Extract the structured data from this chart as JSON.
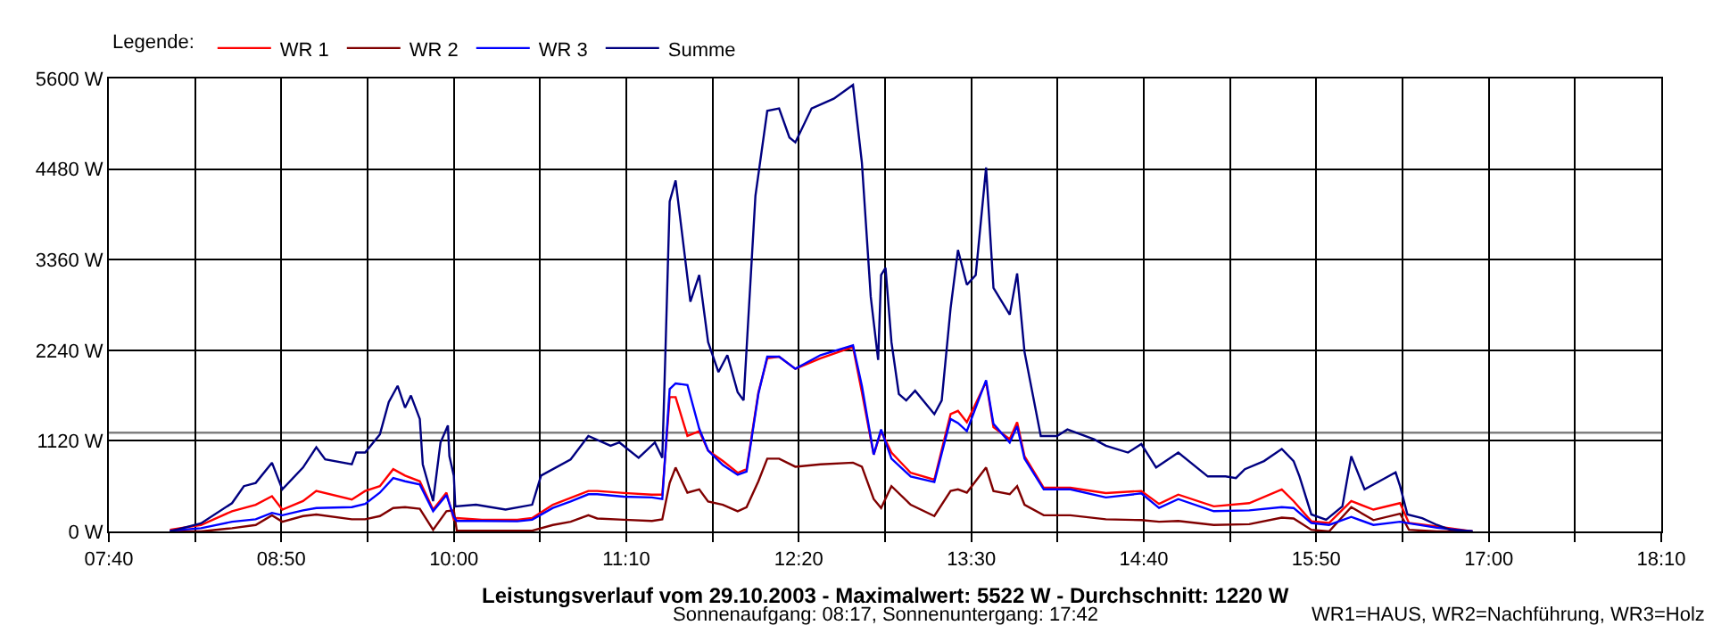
{
  "chart_data": {
    "type": "line",
    "title": "Leistungsverlauf vom 29.10.2003 - Maximalwert: 5522 W - Durchschnitt: 1220 W",
    "subtitle": "Sonnenaufgang: 08:17, Sonnenuntergang: 17:42",
    "legend_title": "Legende:",
    "annotations": [
      "WR1=HAUS, WR2=Nachführung, WR3=Holz"
    ],
    "x": [
      8.08,
      8.29,
      8.5,
      8.66,
      8.77,
      8.84,
      8.98,
      9.07,
      9.31,
      9.4,
      9.5,
      9.59,
      9.67,
      9.77,
      9.86,
      9.95,
      10.0,
      10.02,
      10.19,
      10.43,
      10.53,
      10.67,
      10.79,
      10.91,
      10.97,
      11.15,
      11.34,
      11.41,
      11.46,
      11.5,
      11.58,
      11.66,
      11.72,
      11.82,
      11.92,
      11.98,
      12.06,
      12.12,
      12.2,
      12.31,
      12.48,
      12.7,
      12.76,
      12.84,
      12.89,
      12.96,
      13.09,
      13.25,
      13.36,
      13.41,
      13.47,
      13.6,
      13.65,
      13.76,
      13.81,
      13.86,
      13.99,
      14.17,
      14.41,
      14.65,
      14.77,
      14.9,
      15.14,
      15.38,
      15.6,
      15.68,
      15.8,
      15.92,
      16.07,
      16.22,
      16.4,
      16.46,
      16.65,
      16.89
    ],
    "series": [
      {
        "name": "WR 1",
        "color": "#ff0000",
        "values": [
          20,
          80,
          250,
          330,
          435,
          270,
          375,
          500,
          395,
          500,
          560,
          770,
          690,
          620,
          270,
          480,
          145,
          165,
          145,
          145,
          165,
          330,
          415,
          500,
          500,
          475,
          455,
          455,
          1660,
          1660,
          1180,
          1240,
          1000,
          870,
          725,
          770,
          1720,
          2140,
          2160,
          2010,
          2140,
          2280,
          1720,
          950,
          1240,
          975,
          725,
          640,
          1450,
          1490,
          1350,
          1850,
          1290,
          1140,
          1350,
          930,
          540,
          540,
          475,
          500,
          340,
          455,
          310,
          350,
          520,
          375,
          125,
          105,
          375,
          270,
          350,
          105,
          60,
          0
        ]
      },
      {
        "name": "WR 2",
        "color": "#800000",
        "values": [
          0,
          0,
          40,
          80,
          200,
          120,
          190,
          210,
          150,
          150,
          190,
          290,
          300,
          280,
          20,
          250,
          260,
          10,
          10,
          10,
          10,
          80,
          120,
          200,
          160,
          145,
          130,
          150,
          600,
          790,
          480,
          520,
          370,
          330,
          250,
          300,
          620,
          900,
          900,
          800,
          830,
          850,
          800,
          400,
          290,
          560,
          330,
          190,
          500,
          520,
          480,
          790,
          500,
          460,
          560,
          330,
          200,
          200,
          150,
          140,
          120,
          130,
          80,
          90,
          170,
          160,
          20,
          0,
          300,
          140,
          220,
          20,
          0,
          0
        ]
      },
      {
        "name": "WR 3",
        "color": "#0000ff",
        "values": [
          10,
          40,
          120,
          150,
          230,
          200,
          260,
          290,
          300,
          340,
          480,
          660,
          620,
          580,
          250,
          450,
          180,
          130,
          130,
          125,
          145,
          290,
          370,
          460,
          460,
          430,
          420,
          400,
          1760,
          1830,
          1810,
          1270,
          1000,
          820,
          700,
          740,
          1700,
          2160,
          2160,
          2010,
          2180,
          2300,
          1800,
          950,
          1260,
          900,
          680,
          610,
          1390,
          1340,
          1240,
          1870,
          1330,
          1100,
          1300,
          900,
          520,
          520,
          420,
          470,
          290,
          400,
          250,
          260,
          300,
          290,
          105,
          80,
          180,
          80,
          120,
          100,
          45,
          0
        ]
      },
      {
        "name": "Summe",
        "color": "#000080",
        "x": [
          8.08,
          8.29,
          8.5,
          8.58,
          8.66,
          8.77,
          8.84,
          8.98,
          9.07,
          9.13,
          9.31,
          9.34,
          9.4,
          9.5,
          9.56,
          9.62,
          9.67,
          9.71,
          9.77,
          9.79,
          9.86,
          9.91,
          9.96,
          9.97,
          10.0,
          10.01,
          10.15,
          10.35,
          10.53,
          10.59,
          10.79,
          10.91,
          11.06,
          11.12,
          11.25,
          11.36,
          11.41,
          11.43,
          11.46,
          11.5,
          11.6,
          11.66,
          11.72,
          11.79,
          11.85,
          11.92,
          11.96,
          12.04,
          12.12,
          12.2,
          12.27,
          12.31,
          12.42,
          12.57,
          12.7,
          12.76,
          12.82,
          12.87,
          12.89,
          12.92,
          12.96,
          13.01,
          13.06,
          13.12,
          13.25,
          13.3,
          13.36,
          13.41,
          13.47,
          13.53,
          13.6,
          13.65,
          13.76,
          13.81,
          13.86,
          13.97,
          14.08,
          14.15,
          14.33,
          14.41,
          14.56,
          14.65,
          14.75,
          14.9,
          15.1,
          15.22,
          15.29,
          15.35,
          15.48,
          15.6,
          15.68,
          15.72,
          15.8,
          15.9,
          16.01,
          16.07,
          16.16,
          16.26,
          16.37,
          16.4,
          16.45,
          16.55,
          16.65,
          16.74,
          16.89
        ],
        "values": [
          0,
          100,
          350,
          560,
          600,
          850,
          520,
          790,
          1040,
          890,
          830,
          975,
          975,
          1200,
          1600,
          1800,
          1530,
          1680,
          1390,
          830,
          375,
          1100,
          1310,
          930,
          690,
          310,
          330,
          270,
          330,
          690,
          890,
          1180,
          1060,
          1100,
          910,
          1100,
          910,
          2140,
          4080,
          4340,
          2840,
          3170,
          2340,
          1970,
          2180,
          1720,
          1620,
          4150,
          5200,
          5230,
          4870,
          4810,
          5230,
          5350,
          5520,
          4560,
          2900,
          2120,
          3170,
          3260,
          2340,
          1700,
          1620,
          1740,
          1450,
          1620,
          2760,
          3480,
          3050,
          3170,
          4500,
          3010,
          2680,
          3190,
          2220,
          1180,
          1180,
          1260,
          1140,
          1060,
          975,
          1080,
          790,
          975,
          680,
          680,
          660,
          770,
          870,
          1020,
          870,
          680,
          210,
          145,
          310,
          930,
          520,
          620,
          730,
          560,
          210,
          165,
          80,
          20,
          0
        ]
      }
    ],
    "xlim": [
      7.6667,
      18.1667
    ],
    "xticks": [
      {
        "value": 7.6667,
        "label": "07:40"
      },
      {
        "value": 8.25,
        "label": null
      },
      {
        "value": 8.8333,
        "label": "08:50"
      },
      {
        "value": 9.4167,
        "label": null
      },
      {
        "value": 10,
        "label": "10:00"
      },
      {
        "value": 10.5833,
        "label": null
      },
      {
        "value": 11.1667,
        "label": "11:10"
      },
      {
        "value": 11.75,
        "label": null
      },
      {
        "value": 12.3333,
        "label": "12:20"
      },
      {
        "value": 12.9167,
        "label": null
      },
      {
        "value": 13.5,
        "label": "13:30"
      },
      {
        "value": 14.0833,
        "label": null
      },
      {
        "value": 14.6667,
        "label": "14:40"
      },
      {
        "value": 15.25,
        "label": null
      },
      {
        "value": 15.8333,
        "label": "15:50"
      },
      {
        "value": 16.4167,
        "label": null
      },
      {
        "value": 17,
        "label": "17:00"
      },
      {
        "value": 17.5833,
        "label": null
      },
      {
        "value": 18.1667,
        "label": "18:10"
      }
    ],
    "ylim": [
      0,
      5600
    ],
    "yticks": [
      {
        "value": 0,
        "label": "0 W"
      },
      {
        "value": 1120,
        "label": "1120 W"
      },
      {
        "value": 2240,
        "label": "2240 W"
      },
      {
        "value": 3360,
        "label": "3360 W"
      },
      {
        "value": 4480,
        "label": "4480 W"
      },
      {
        "value": 5600,
        "label": "5600 W"
      }
    ],
    "ref_lines": [
      {
        "axis": "y",
        "value": 1220,
        "color": "#808080"
      }
    ],
    "grid": true,
    "legend": "top left",
    "marker": "none",
    "line_style": "solid"
  }
}
